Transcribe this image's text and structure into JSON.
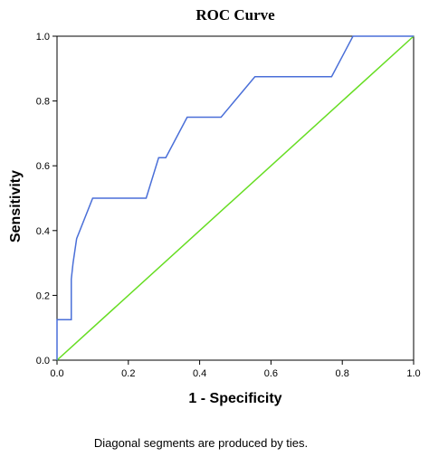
{
  "chart_data": {
    "type": "line",
    "title": "ROC Curve",
    "xlabel": "1 - Specificity",
    "ylabel": "Sensitivity",
    "footnote": "Diagonal segments are produced by ties.",
    "xlim": [
      0,
      1
    ],
    "ylim": [
      0,
      1
    ],
    "x_ticks": [
      "0.0",
      "0.2",
      "0.4",
      "0.6",
      "0.8",
      "1.0"
    ],
    "y_ticks": [
      "0.0",
      "0.2",
      "0.4",
      "0.6",
      "0.8",
      "1.0"
    ],
    "grid": false,
    "legend": "none",
    "series": [
      {
        "color": "#4a6fd8",
        "x": [
          0,
          0,
          0.04,
          0.04,
          0.045,
          0.055,
          0.1,
          0.25,
          0.285,
          0.3,
          0.305,
          0.365,
          0.46,
          0.555,
          0.77,
          0.83,
          1.0
        ],
        "y": [
          0,
          0.125,
          0.125,
          0.25,
          0.3,
          0.375,
          0.5,
          0.5,
          0.625,
          0.625,
          0.625,
          0.75,
          0.75,
          0.875,
          0.875,
          1.0,
          1.0
        ]
      },
      {
        "color": "#66dd22",
        "x": [
          0,
          1
        ],
        "y": [
          0,
          1
        ]
      }
    ]
  }
}
